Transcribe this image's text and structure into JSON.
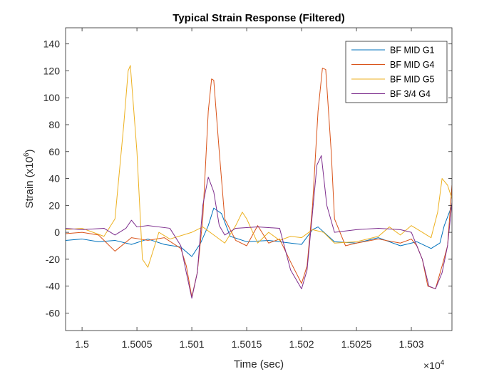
{
  "chart_data": {
    "type": "line",
    "title": "Typical Strain Response (Filtered)",
    "xlabel": "Time (sec)",
    "ylabel": "Strain (x10",
    "ylabel_sup": "6",
    "ylabel_end": ")",
    "x_exponent_prefix": "×10",
    "x_exponent_power": "4",
    "xlim": [
      1.49985,
      1.50337
    ],
    "ylim": [
      -73,
      152
    ],
    "xticks": [
      1.5,
      1.5005,
      1.501,
      1.5015,
      1.502,
      1.5025,
      1.503
    ],
    "xtick_labels": [
      "1.5",
      "1.5005",
      "1.501",
      "1.5015",
      "1.502",
      "1.5025",
      "1.503"
    ],
    "yticks": [
      -60,
      -40,
      -20,
      0,
      20,
      40,
      60,
      80,
      100,
      120,
      140
    ],
    "ytick_labels": [
      "-60",
      "-40",
      "-20",
      "0",
      "20",
      "40",
      "60",
      "80",
      "100",
      "120",
      "140"
    ],
    "grid": false,
    "legend_position": "top-right",
    "series": [
      {
        "name": "BF MID G1",
        "color": "#0072BD",
        "x": [
          1.49985,
          1.5,
          1.50015,
          1.5003,
          1.50045,
          1.5006,
          1.50075,
          1.5009,
          1.501,
          1.50108,
          1.50115,
          1.5012,
          1.50127,
          1.50135,
          1.5015,
          1.5017,
          1.5019,
          1.502,
          1.5021,
          1.50215,
          1.5023,
          1.5025,
          1.5027,
          1.5029,
          1.50305,
          1.50318,
          1.50326,
          1.5033,
          1.50337
        ],
        "y": [
          -6,
          -5,
          -7,
          -6,
          -9,
          -5,
          -9,
          -11,
          -18,
          -8,
          5,
          18,
          14,
          -3,
          -7,
          -6,
          -8,
          -9,
          2,
          4,
          -7,
          -8,
          -4,
          -10,
          -7,
          -12,
          -8,
          5,
          20
        ]
      },
      {
        "name": "BF MID G4",
        "color": "#D95319",
        "x": [
          1.49985,
          1.5,
          1.50015,
          1.5003,
          1.50045,
          1.5006,
          1.50075,
          1.5009,
          1.50095,
          1.501,
          1.50105,
          1.5011,
          1.50115,
          1.50118,
          1.5012,
          1.50125,
          1.5013,
          1.5014,
          1.5015,
          1.5016,
          1.5017,
          1.5018,
          1.5019,
          1.502,
          1.50205,
          1.5021,
          1.50215,
          1.50219,
          1.50222,
          1.50227,
          1.5023,
          1.5024,
          1.5025,
          1.5027,
          1.5029,
          1.503,
          1.50305,
          1.5031,
          1.50315,
          1.50322,
          1.50328,
          1.50333,
          1.50337
        ],
        "y": [
          -1,
          0,
          -2,
          -14,
          -4,
          -6,
          -4,
          -12,
          -25,
          -48,
          -30,
          10,
          90,
          114,
          113,
          60,
          10,
          -6,
          -10,
          5,
          -8,
          -5,
          -22,
          -38,
          -25,
          20,
          90,
          122,
          121,
          60,
          10,
          -10,
          -8,
          -5,
          -8,
          -5,
          -10,
          -20,
          -40,
          -42,
          -25,
          -10,
          35
        ]
      },
      {
        "name": "BF MID G5",
        "color": "#EDB120",
        "x": [
          1.49985,
          1.5,
          1.5002,
          1.5003,
          1.50038,
          1.50042,
          1.50044,
          1.5005,
          1.50055,
          1.5006,
          1.5007,
          1.5008,
          1.501,
          1.5011,
          1.5012,
          1.5013,
          1.5014,
          1.50146,
          1.5015,
          1.5016,
          1.5017,
          1.5018,
          1.5019,
          1.502,
          1.5021,
          1.5022,
          1.5023,
          1.5025,
          1.5027,
          1.5028,
          1.5029,
          1.503,
          1.5031,
          1.50318,
          1.50324,
          1.50328,
          1.50333,
          1.50337
        ],
        "y": [
          2,
          3,
          -3,
          10,
          80,
          120,
          124,
          60,
          -20,
          -26,
          0,
          -5,
          0,
          4,
          -2,
          -8,
          5,
          15,
          10,
          -8,
          0,
          -6,
          -3,
          -4,
          2,
          0,
          -8,
          -7,
          -3,
          4,
          -2,
          5,
          0,
          -4,
          15,
          40,
          35,
          25
        ]
      },
      {
        "name": "BF 3/4 G4",
        "color": "#7E2F8E",
        "x": [
          1.49985,
          1.5,
          1.5002,
          1.5003,
          1.5004,
          1.50045,
          1.5005,
          1.5006,
          1.5008,
          1.5009,
          1.50095,
          1.501,
          1.50105,
          1.5011,
          1.50115,
          1.5012,
          1.50125,
          1.5013,
          1.5014,
          1.5016,
          1.5018,
          1.5019,
          1.502,
          1.50205,
          1.5021,
          1.50214,
          1.50218,
          1.50223,
          1.5023,
          1.5025,
          1.5027,
          1.5029,
          1.503,
          1.5031,
          1.50316,
          1.50322,
          1.50328,
          1.50333,
          1.50337
        ],
        "y": [
          3,
          2,
          3,
          -2,
          3,
          9,
          4,
          5,
          3,
          -10,
          -30,
          -49,
          -30,
          20,
          41,
          30,
          5,
          -2,
          3,
          4,
          3,
          -28,
          -42,
          -28,
          15,
          50,
          57,
          20,
          0,
          2,
          3,
          2,
          0,
          -20,
          -40,
          -42,
          -30,
          -10,
          22
        ]
      }
    ]
  }
}
